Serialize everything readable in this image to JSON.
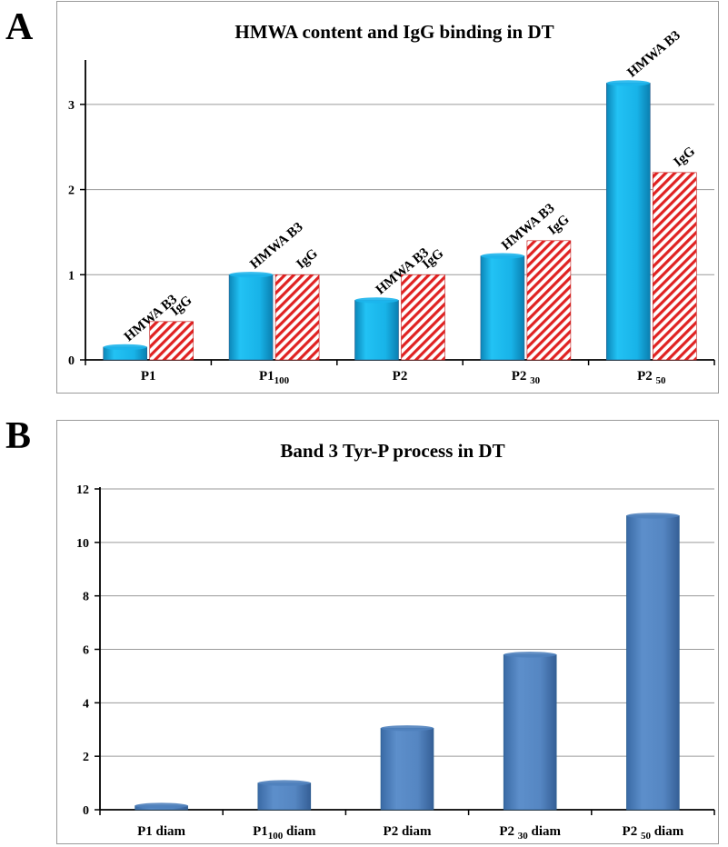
{
  "panels": [
    {
      "letter": "A"
    },
    {
      "letter": "B"
    }
  ],
  "chart_data": [
    {
      "type": "bar",
      "title": "HMWA content and IgG binding in DT",
      "xlabel": "",
      "ylabel": "",
      "ylim": [
        0,
        3.5
      ],
      "yticks": [
        0,
        1,
        2,
        3
      ],
      "grid": true,
      "categories": [
        {
          "main": "P1",
          "sub": ""
        },
        {
          "main": "P1",
          "sub": "100"
        },
        {
          "main": "P2",
          "sub": ""
        },
        {
          "main": "P2 ",
          "sub": "30"
        },
        {
          "main": "P2 ",
          "sub": "50"
        }
      ],
      "series": [
        {
          "values": [
            0.15,
            1.0,
            0.7,
            1.22,
            3.25
          ],
          "color": "#1cb5ec",
          "pattern": "solid",
          "bar_label": "HMWA B3"
        },
        {
          "values": [
            0.45,
            1.0,
            1.0,
            1.4,
            2.2
          ],
          "color": "#e02222",
          "pattern": "diagonal-stripes",
          "bar_label": "IgG"
        }
      ]
    },
    {
      "type": "bar",
      "title": "Band 3 Tyr-P process in DT",
      "xlabel": "",
      "ylabel": "",
      "ylim": [
        0,
        12
      ],
      "yticks": [
        0,
        2,
        4,
        6,
        8,
        10,
        12
      ],
      "grid": true,
      "categories": [
        {
          "main": "P1 diam",
          "sub": "",
          "after": ""
        },
        {
          "main": "P1",
          "sub": "100",
          "after": " diam"
        },
        {
          "main": "P2 diam",
          "sub": "",
          "after": ""
        },
        {
          "main": "P2 ",
          "sub": "30",
          "after": " diam"
        },
        {
          "main": "P2 ",
          "sub": "50",
          "after": " diam"
        }
      ],
      "series": [
        {
          "values": [
            0.15,
            1.0,
            3.05,
            5.8,
            11.0
          ],
          "color": "#4f81bd",
          "pattern": "solid"
        }
      ]
    }
  ]
}
